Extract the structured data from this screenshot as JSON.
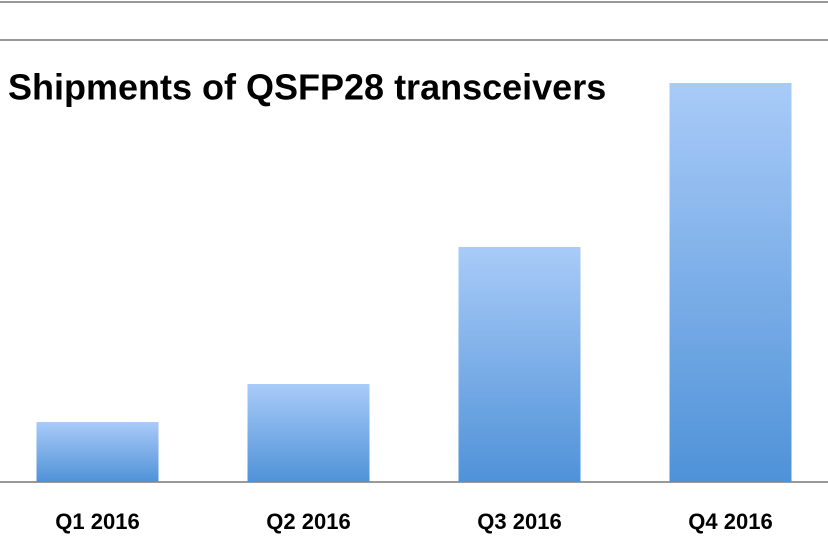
{
  "chart_data": {
    "type": "bar",
    "title": "Shipments of QSFP28 transceivers",
    "categories": [
      "Q1 2016",
      "Q2 2016",
      "Q3 2016",
      "Q4 2016"
    ],
    "values": [
      60,
      98,
      235,
      399
    ],
    "gradient": [
      "#a9cbf8",
      "#4f92d8"
    ],
    "ylim": [
      0,
      442
    ]
  }
}
